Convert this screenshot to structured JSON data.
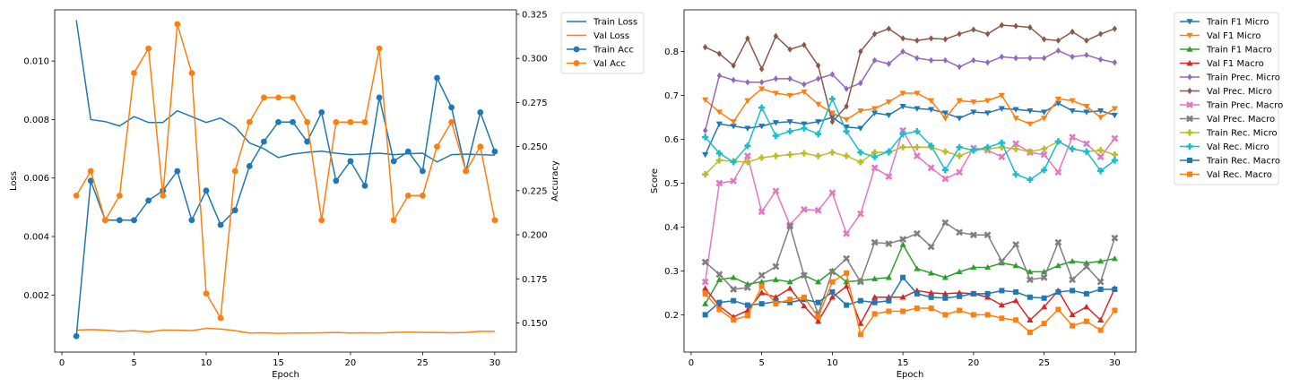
{
  "chart_data": [
    {
      "type": "line",
      "xlabel": "Epoch",
      "ylabel": "Loss",
      "y2label": "Accuracy",
      "xlim": [
        -0.5,
        31.5
      ],
      "xticks": [
        0,
        5,
        10,
        15,
        20,
        25,
        30
      ],
      "ylim": [
        5e-05,
        0.01175
      ],
      "yticks": [
        0.002,
        0.004,
        0.006,
        0.008,
        0.01
      ],
      "yticklabels": [
        "0.002",
        "0.004",
        "0.006",
        "0.008",
        "0.010"
      ],
      "y2lim": [
        0.1335,
        0.3275
      ],
      "y2ticks": [
        0.15,
        0.175,
        0.2,
        0.225,
        0.25,
        0.275,
        0.3,
        0.325
      ],
      "y2ticklabels": [
        "0.150",
        "0.175",
        "0.200",
        "0.225",
        "0.250",
        "0.275",
        "0.300",
        "0.325"
      ],
      "grid": false,
      "legend_position": "outside-top-right",
      "x": [
        1,
        2,
        3,
        4,
        5,
        6,
        7,
        8,
        9,
        10,
        11,
        12,
        13,
        14,
        15,
        16,
        17,
        18,
        19,
        20,
        21,
        22,
        23,
        24,
        25,
        26,
        27,
        28,
        29,
        30
      ],
      "series": [
        {
          "name": "Train Loss",
          "axis": "left",
          "color": "#1f77b4",
          "marker": "none",
          "values": [
            0.0114,
            0.008,
            0.00793,
            0.00778,
            0.0081,
            0.0079,
            0.0079,
            0.0083,
            0.0081,
            0.0079,
            0.00805,
            0.00775,
            0.0072,
            0.007,
            0.0067,
            0.00682,
            0.00688,
            0.00692,
            0.00685,
            0.0068,
            0.00682,
            0.00685,
            0.0068,
            0.00683,
            0.00685,
            0.00655,
            0.0068,
            0.00682,
            0.0068,
            0.00678
          ]
        },
        {
          "name": "Val Loss",
          "axis": "left",
          "color": "#ff7f0e",
          "marker": "none",
          "values": [
            0.0008,
            0.00082,
            0.0008,
            0.00076,
            0.00078,
            0.00074,
            0.0008,
            0.0008,
            0.00078,
            0.00086,
            0.00084,
            0.00078,
            0.0007,
            0.00071,
            0.00069,
            0.0007,
            0.0007,
            0.00071,
            0.00072,
            0.0007,
            0.00071,
            0.0007,
            0.00072,
            0.00073,
            0.00072,
            0.00072,
            0.00071,
            0.00072,
            0.00076,
            0.00076
          ]
        },
        {
          "name": "Train Acc",
          "axis": "right",
          "color": "#1f77b4",
          "marker": "circle",
          "values": [
            0.1425,
            0.2306,
            0.2083,
            0.2083,
            0.2083,
            0.2194,
            0.225,
            0.2361,
            0.2083,
            0.225,
            0.2056,
            0.2139,
            0.2389,
            0.2528,
            0.2639,
            0.2639,
            0.2528,
            0.2694,
            0.2306,
            0.2417,
            0.2278,
            0.2778,
            0.2417,
            0.2472,
            0.2361,
            0.2889,
            0.2722,
            0.2361,
            0.2694,
            0.2472
          ]
        },
        {
          "name": "Val Acc",
          "axis": "right",
          "color": "#ff7f0e",
          "marker": "circle",
          "values": [
            0.2222,
            0.2361,
            0.2083,
            0.2222,
            0.2917,
            0.3056,
            0.2222,
            0.3194,
            0.2917,
            0.1667,
            0.1528,
            0.2361,
            0.2639,
            0.2778,
            0.2778,
            0.2778,
            0.2639,
            0.2083,
            0.2639,
            0.2639,
            0.2639,
            0.3056,
            0.2083,
            0.2222,
            0.2222,
            0.25,
            0.2639,
            0.2361,
            0.25,
            0.2083
          ]
        }
      ]
    },
    {
      "type": "line",
      "xlabel": "Epoch",
      "ylabel": "Score",
      "xlim": [
        -0.5,
        31.5
      ],
      "xticks": [
        0,
        5,
        10,
        15,
        20,
        25,
        30
      ],
      "ylim": [
        0.115,
        0.895
      ],
      "yticks": [
        0.2,
        0.3,
        0.4,
        0.5,
        0.6,
        0.7,
        0.8
      ],
      "yticklabels": [
        "0.2",
        "0.3",
        "0.4",
        "0.5",
        "0.6",
        "0.7",
        "0.8"
      ],
      "grid": false,
      "legend_position": "outside-top-right",
      "x": [
        1,
        2,
        3,
        4,
        5,
        6,
        7,
        8,
        9,
        10,
        11,
        12,
        13,
        14,
        15,
        16,
        17,
        18,
        19,
        20,
        21,
        22,
        23,
        24,
        25,
        26,
        27,
        28,
        29,
        30
      ],
      "series": [
        {
          "name": "Train F1 Micro",
          "color": "#1f77b4",
          "marker": "tri-down",
          "values": [
            0.565,
            0.635,
            0.63,
            0.625,
            0.63,
            0.638,
            0.64,
            0.635,
            0.64,
            0.65,
            0.628,
            0.625,
            0.66,
            0.655,
            0.675,
            0.67,
            0.668,
            0.66,
            0.648,
            0.662,
            0.66,
            0.67,
            0.668,
            0.665,
            0.662,
            0.682,
            0.665,
            0.662,
            0.665,
            0.655
          ]
        },
        {
          "name": "Val F1 Micro",
          "color": "#ff7f0e",
          "marker": "tri-down",
          "values": [
            0.69,
            0.662,
            0.64,
            0.688,
            0.715,
            0.705,
            0.7,
            0.708,
            0.68,
            0.66,
            0.645,
            0.665,
            0.67,
            0.685,
            0.705,
            0.705,
            0.688,
            0.648,
            0.688,
            0.685,
            0.688,
            0.7,
            0.648,
            0.635,
            0.648,
            0.692,
            0.688,
            0.675,
            0.65,
            0.67
          ]
        },
        {
          "name": "Train F1 Macro",
          "color": "#2ca02c",
          "marker": "tri-up",
          "values": [
            0.225,
            0.28,
            0.285,
            0.27,
            0.275,
            0.28,
            0.275,
            0.29,
            0.275,
            0.3,
            0.275,
            0.278,
            0.282,
            0.285,
            0.36,
            0.305,
            0.295,
            0.285,
            0.298,
            0.308,
            0.308,
            0.318,
            0.312,
            0.298,
            0.298,
            0.312,
            0.322,
            0.318,
            0.322,
            0.328
          ]
        },
        {
          "name": "Val F1 Macro",
          "color": "#d62728",
          "marker": "tri-up",
          "values": [
            0.26,
            0.22,
            0.195,
            0.21,
            0.25,
            0.24,
            0.26,
            0.22,
            0.185,
            0.24,
            0.265,
            0.18,
            0.24,
            0.24,
            0.24,
            0.255,
            0.25,
            0.248,
            0.25,
            0.248,
            0.24,
            0.222,
            0.232,
            0.188,
            0.218,
            0.255,
            0.2,
            0.218,
            0.188,
            0.26
          ]
        },
        {
          "name": "Train Prec. Micro",
          "color": "#9467bd",
          "marker": "diamond",
          "values": [
            0.62,
            0.745,
            0.735,
            0.73,
            0.73,
            0.738,
            0.738,
            0.725,
            0.738,
            0.748,
            0.715,
            0.728,
            0.78,
            0.772,
            0.8,
            0.785,
            0.78,
            0.78,
            0.765,
            0.78,
            0.775,
            0.788,
            0.785,
            0.785,
            0.785,
            0.802,
            0.788,
            0.792,
            0.782,
            0.775
          ]
        },
        {
          "name": "Val Prec. Micro",
          "color": "#8c564b",
          "marker": "diamond",
          "values": [
            0.81,
            0.795,
            0.768,
            0.83,
            0.76,
            0.835,
            0.805,
            0.815,
            0.768,
            0.64,
            0.675,
            0.8,
            0.84,
            0.852,
            0.83,
            0.825,
            0.83,
            0.828,
            0.84,
            0.85,
            0.84,
            0.86,
            0.858,
            0.855,
            0.828,
            0.825,
            0.845,
            0.825,
            0.84,
            0.852
          ]
        },
        {
          "name": "Train Prec. Macro",
          "color": "#e377c2",
          "marker": "x",
          "values": [
            0.275,
            0.5,
            0.505,
            0.562,
            0.435,
            0.482,
            0.405,
            0.44,
            0.438,
            0.478,
            0.385,
            0.43,
            0.535,
            0.515,
            0.62,
            0.562,
            0.535,
            0.51,
            0.525,
            0.58,
            0.575,
            0.56,
            0.59,
            0.57,
            0.565,
            0.525,
            0.605,
            0.59,
            0.56,
            0.602
          ]
        },
        {
          "name": "Val Prec. Macro",
          "color": "#7f7f7f",
          "marker": "x",
          "values": [
            0.32,
            0.292,
            0.258,
            0.262,
            0.29,
            0.31,
            0.402,
            0.29,
            0.202,
            0.298,
            0.328,
            0.275,
            0.365,
            0.362,
            0.372,
            0.385,
            0.355,
            0.41,
            0.388,
            0.382,
            0.382,
            0.322,
            0.36,
            0.28,
            0.285,
            0.365,
            0.28,
            0.31,
            0.275,
            0.375
          ]
        },
        {
          "name": "Train Rec. Micro",
          "color": "#bcbd22",
          "marker": "plus",
          "values": [
            0.52,
            0.552,
            0.55,
            0.548,
            0.558,
            0.562,
            0.565,
            0.568,
            0.562,
            0.57,
            0.562,
            0.548,
            0.57,
            0.57,
            0.582,
            0.582,
            0.582,
            0.572,
            0.562,
            0.575,
            0.578,
            0.582,
            0.578,
            0.572,
            0.578,
            0.595,
            0.578,
            0.572,
            0.575,
            0.565
          ]
        },
        {
          "name": "Val Rec. Micro",
          "color": "#17becf",
          "marker": "plus",
          "values": [
            0.605,
            0.568,
            0.548,
            0.585,
            0.672,
            0.608,
            0.618,
            0.625,
            0.612,
            0.692,
            0.618,
            0.57,
            0.56,
            0.572,
            0.612,
            0.618,
            0.585,
            0.53,
            0.582,
            0.575,
            0.582,
            0.592,
            0.52,
            0.508,
            0.53,
            0.595,
            0.578,
            0.572,
            0.528,
            0.552
          ]
        },
        {
          "name": "Train Rec. Macro",
          "color": "#1f77b4",
          "marker": "square",
          "values": [
            0.2,
            0.228,
            0.232,
            0.222,
            0.225,
            0.23,
            0.228,
            0.235,
            0.228,
            0.252,
            0.222,
            0.232,
            0.228,
            0.232,
            0.285,
            0.248,
            0.24,
            0.238,
            0.242,
            0.248,
            0.248,
            0.255,
            0.252,
            0.24,
            0.238,
            0.252,
            0.255,
            0.248,
            0.258,
            0.258
          ]
        },
        {
          "name": "Val Rec. Macro",
          "color": "#ff7f0e",
          "marker": "square",
          "values": [
            0.248,
            0.212,
            0.188,
            0.198,
            0.265,
            0.225,
            0.235,
            0.24,
            0.195,
            0.275,
            0.295,
            0.155,
            0.202,
            0.208,
            0.208,
            0.215,
            0.215,
            0.2,
            0.21,
            0.2,
            0.2,
            0.192,
            0.188,
            0.16,
            0.18,
            0.212,
            0.175,
            0.185,
            0.165,
            0.21
          ]
        }
      ]
    }
  ]
}
